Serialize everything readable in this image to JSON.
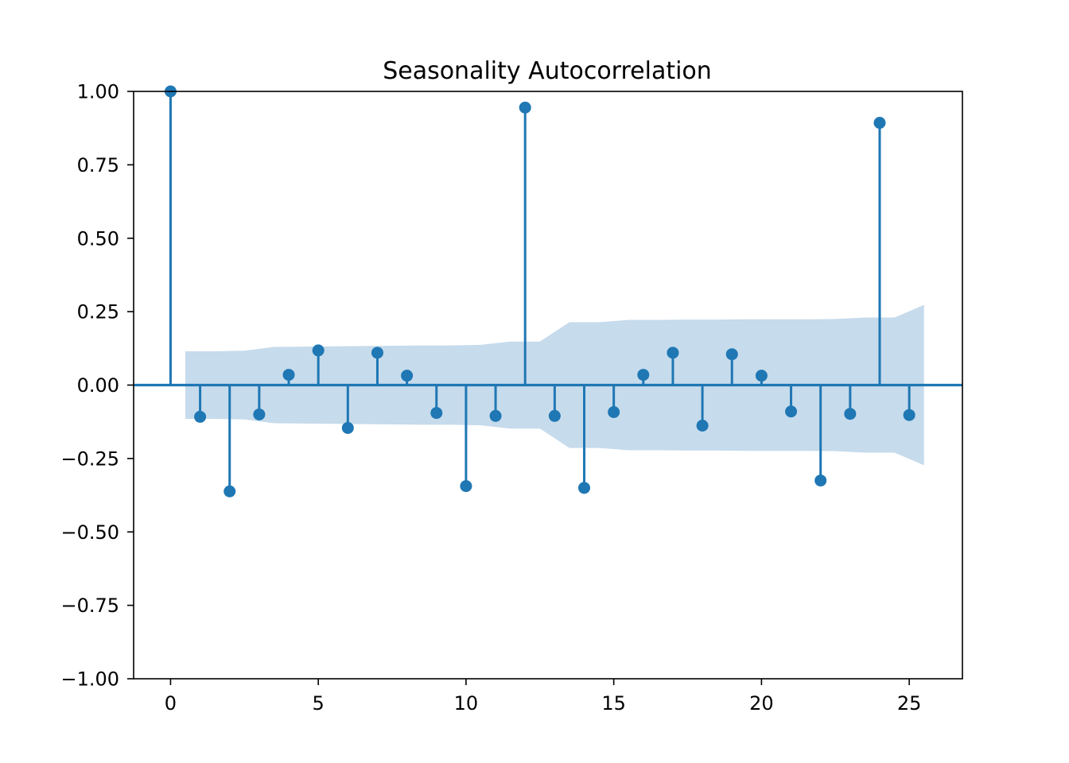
{
  "chart_data": {
    "type": "stem",
    "title": "Seasonality Autocorrelation",
    "xlabel": "",
    "ylabel": "",
    "xlim": [
      -1.25,
      26.8
    ],
    "ylim": [
      -1.0,
      1.0
    ],
    "x_ticks": [
      0,
      5,
      10,
      15,
      20,
      25
    ],
    "x_tick_labels": [
      "0",
      "5",
      "10",
      "15",
      "20",
      "25"
    ],
    "y_ticks": [
      1.0,
      0.75,
      0.5,
      0.25,
      0.0,
      -0.25,
      -0.5,
      -0.75,
      -1.0
    ],
    "y_tick_labels": [
      "1.00",
      "0.75",
      "0.50",
      "0.25",
      "0.00",
      "−0.25",
      "−0.50",
      "−0.75",
      "−1.00"
    ],
    "grid": false,
    "color": "#1f77b4",
    "band_color": "#c6dbec",
    "lags": [
      0,
      1,
      2,
      3,
      4,
      5,
      6,
      7,
      8,
      9,
      10,
      11,
      12,
      13,
      14,
      15,
      16,
      17,
      18,
      19,
      20,
      21,
      22,
      23,
      24,
      25
    ],
    "values": [
      1.0,
      -0.108,
      -0.362,
      -0.1,
      0.035,
      0.118,
      -0.146,
      0.11,
      0.032,
      -0.095,
      -0.344,
      -0.105,
      0.945,
      -0.105,
      -0.35,
      -0.092,
      0.035,
      0.11,
      -0.138,
      0.105,
      0.032,
      -0.09,
      -0.325,
      -0.098,
      0.893,
      -0.102
    ],
    "confidence_band": {
      "x": [
        0.5,
        1.5,
        2.5,
        3.5,
        4.5,
        5.5,
        6.5,
        7.5,
        8.5,
        9.5,
        10.5,
        11.5,
        12.5,
        13.5,
        14.5,
        15.5,
        16.5,
        17.5,
        18.5,
        19.5,
        20.5,
        21.5,
        22.5,
        23.5,
        24.5,
        25.5
      ],
      "upper": [
        0.115,
        0.115,
        0.117,
        0.13,
        0.131,
        0.132,
        0.133,
        0.134,
        0.135,
        0.135,
        0.137,
        0.148,
        0.148,
        0.214,
        0.214,
        0.222,
        0.222,
        0.223,
        0.223,
        0.224,
        0.224,
        0.224,
        0.225,
        0.23,
        0.23,
        0.273
      ],
      "lower": [
        -0.115,
        -0.115,
        -0.117,
        -0.13,
        -0.131,
        -0.132,
        -0.133,
        -0.134,
        -0.135,
        -0.135,
        -0.137,
        -0.148,
        -0.148,
        -0.214,
        -0.214,
        -0.222,
        -0.222,
        -0.223,
        -0.223,
        -0.224,
        -0.224,
        -0.224,
        -0.225,
        -0.23,
        -0.23,
        -0.273
      ]
    }
  }
}
